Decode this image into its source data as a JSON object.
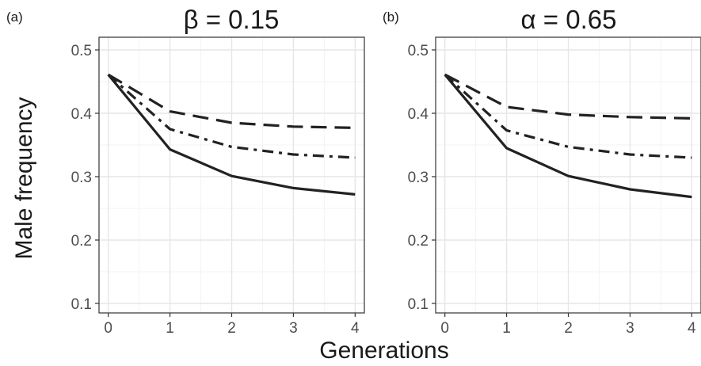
{
  "figure": {
    "ylabel": "Male frequency",
    "xlabel": "Generations"
  },
  "chart_data": [
    {
      "type": "line",
      "panel_label": "(a)",
      "title": "β = 0.15",
      "xlabel": "Generations",
      "ylabel": "Male frequency",
      "x": [
        0,
        1,
        2,
        3,
        4
      ],
      "xlim": [
        -0.15,
        4.15
      ],
      "ylim": [
        0.085,
        0.52
      ],
      "xticks": [
        0,
        1,
        2,
        3,
        4
      ],
      "yticks": [
        0.1,
        0.2,
        0.3,
        0.4,
        0.5
      ],
      "ytick_labels": [
        "0.1",
        "0.2",
        "0.3",
        "0.4",
        "0.5"
      ],
      "grid": true,
      "series": [
        {
          "line_style": "long-dash",
          "color": "#222222",
          "values": [
            0.461,
            0.403,
            0.385,
            0.379,
            0.377
          ]
        },
        {
          "line_style": "dash-dot",
          "color": "#222222",
          "values": [
            0.461,
            0.375,
            0.347,
            0.335,
            0.33
          ]
        },
        {
          "line_style": "solid",
          "color": "#222222",
          "values": [
            0.461,
            0.343,
            0.301,
            0.282,
            0.272
          ]
        }
      ]
    },
    {
      "type": "line",
      "panel_label": "(b)",
      "title": "α = 0.65",
      "xlabel": "Generations",
      "ylabel": "Male frequency",
      "x": [
        0,
        1,
        2,
        3,
        4
      ],
      "xlim": [
        -0.15,
        4.15
      ],
      "ylim": [
        0.085,
        0.52
      ],
      "xticks": [
        0,
        1,
        2,
        3,
        4
      ],
      "yticks": [
        0.1,
        0.2,
        0.3,
        0.4,
        0.5
      ],
      "ytick_labels": [
        "0.1",
        "0.2",
        "0.3",
        "0.4",
        "0.5"
      ],
      "grid": true,
      "series": [
        {
          "line_style": "long-dash",
          "color": "#222222",
          "values": [
            0.461,
            0.41,
            0.398,
            0.394,
            0.392
          ]
        },
        {
          "line_style": "dash-dot",
          "color": "#222222",
          "values": [
            0.461,
            0.373,
            0.347,
            0.335,
            0.33
          ]
        },
        {
          "line_style": "solid",
          "color": "#222222",
          "values": [
            0.461,
            0.345,
            0.301,
            0.28,
            0.268
          ]
        }
      ]
    }
  ]
}
